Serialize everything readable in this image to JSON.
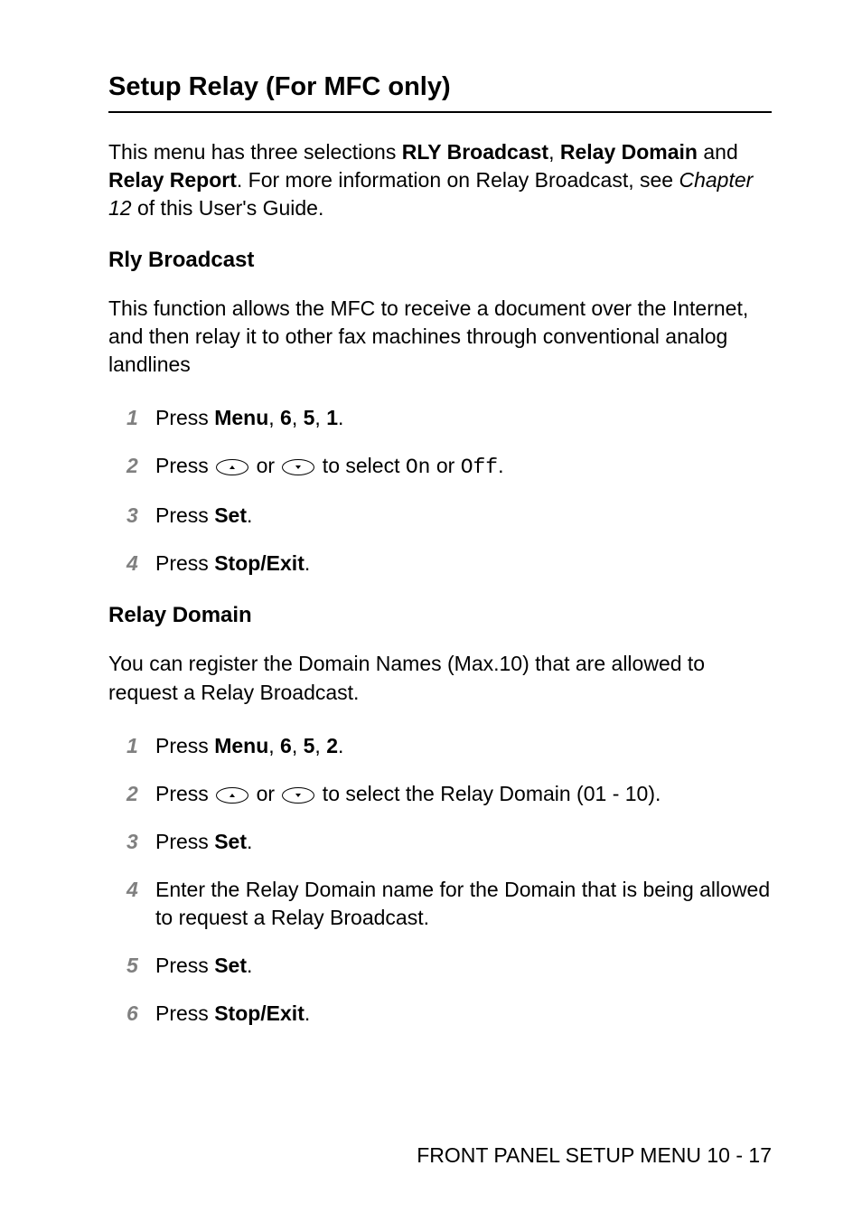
{
  "section_title": "Setup Relay (For MFC only)",
  "intro": {
    "pre": "This menu has three selections ",
    "b1": "RLY Broadcast",
    "sep1": ", ",
    "b2": "Relay Domain",
    "mid": " and ",
    "b3": "Relay Report",
    "post1": ". For more information on Relay Broadcast, see ",
    "chapter_ref": "Chapter 12",
    "post2": " of this User's Guide."
  },
  "rly_broadcast": {
    "heading": "Rly Broadcast",
    "para": "This function allows the MFC to receive a document over the Internet, and then relay it to other fax machines through conventional analog landlines",
    "steps": {
      "s1": {
        "pre": "Press ",
        "b1": "Menu",
        "sep1": ", ",
        "b2": "6",
        "sep2": ", ",
        "b3": "5",
        "sep3": ", ",
        "b4": "1",
        "post": "."
      },
      "s2": {
        "pre": "Press ",
        "mid1": " or ",
        "mid2": " to select ",
        "opt1": "On",
        "or": " or ",
        "opt2": "Off",
        "post": "."
      },
      "s3": {
        "pre": "Press ",
        "b1": "Set",
        "post": "."
      },
      "s4": {
        "pre": "Press ",
        "b1": "Stop/Exit",
        "post": "."
      }
    }
  },
  "relay_domain": {
    "heading": "Relay Domain",
    "para": "You can register the Domain Names (Max.10) that are allowed to request a Relay Broadcast.",
    "steps": {
      "s1": {
        "pre": "Press ",
        "b1": "Menu",
        "sep1": ", ",
        "b2": "6",
        "sep2": ", ",
        "b3": "5",
        "sep3": ", ",
        "b4": "2",
        "post": "."
      },
      "s2": {
        "pre": "Press ",
        "mid1": " or ",
        "mid2": " to select the Relay Domain (01 - 10)."
      },
      "s3": {
        "pre": "Press ",
        "b1": "Set",
        "post": "."
      },
      "s4": {
        "text": "Enter the Relay Domain name for the Domain that is being allowed to request a Relay Broadcast."
      },
      "s5": {
        "pre": "Press ",
        "b1": "Set",
        "post": "."
      },
      "s6": {
        "pre": "Press ",
        "b1": "Stop/Exit",
        "post": "."
      }
    }
  },
  "footer": "FRONT PANEL SETUP MENU 10 - 17",
  "step_numbers": {
    "n1": "1",
    "n2": "2",
    "n3": "3",
    "n4": "4",
    "n5": "5",
    "n6": "6"
  },
  "colors": {
    "text": "#000000",
    "step_number": "#808080",
    "background": "#ffffff"
  },
  "typography": {
    "section_title_size_pt": 22,
    "body_size_pt": 17,
    "subheading_size_pt": 18,
    "font_family": "Arial"
  }
}
